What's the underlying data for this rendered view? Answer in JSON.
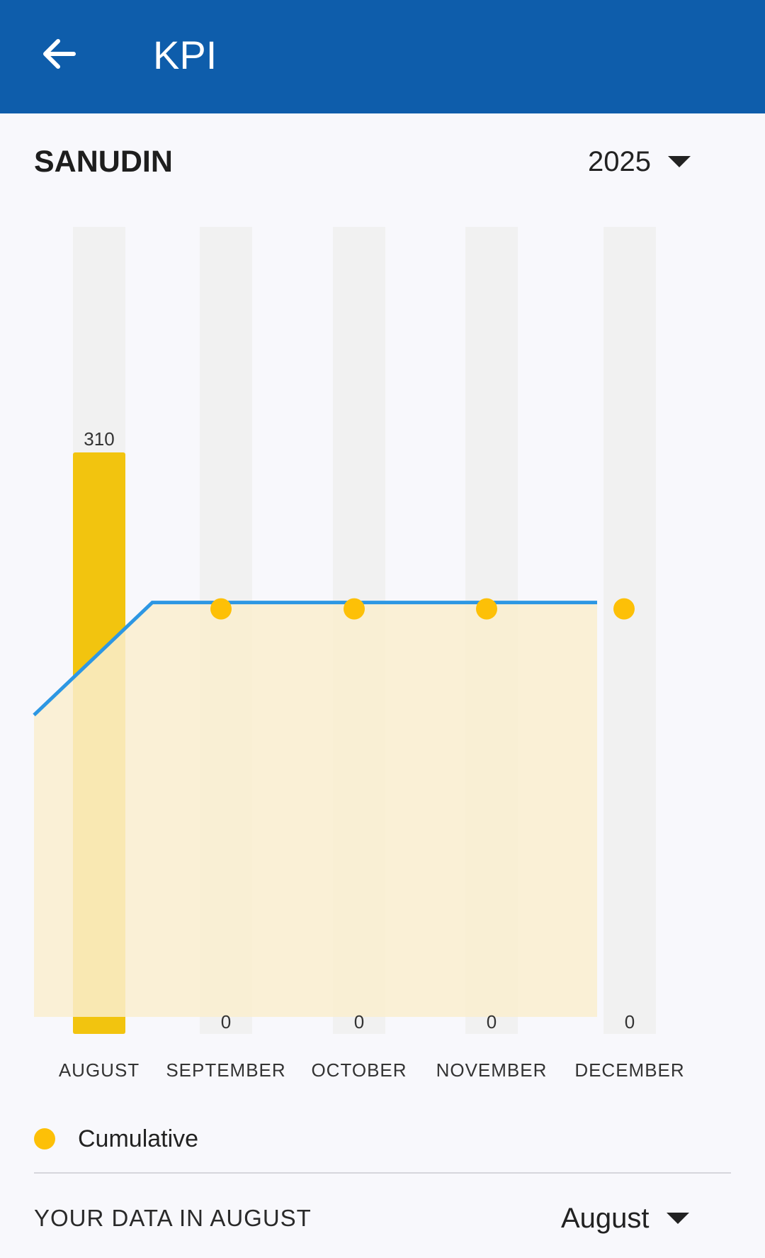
{
  "header": {
    "title": "KPI",
    "back_icon": "arrow-left-icon",
    "background_color": "#0e5dab"
  },
  "user": {
    "name": "SANUDIN"
  },
  "year_select": {
    "value": "2025"
  },
  "chart_data": {
    "type": "bar",
    "categories": [
      "AUGUST",
      "SEPTEMBER",
      "OCTOBER",
      "NOVEMBER",
      "DECEMBER"
    ],
    "series": [
      {
        "values": [
          310,
          0,
          0,
          0,
          0
        ],
        "color": "#f2c40f"
      }
    ],
    "data_labels": [
      "310",
      "0",
      "0",
      "0",
      "0"
    ],
    "cumulative": [
      170,
      230,
      230,
      230,
      230
    ],
    "legend": [
      {
        "name": "Cumulative",
        "color": "#fdc007"
      }
    ],
    "ylim": [
      0,
      400
    ],
    "line_color": "#2d97e3",
    "area_color": "#faefcf",
    "track_color": "#f1f1f1",
    "grid": false
  },
  "data_section": {
    "title": "YOUR DATA IN AUGUST",
    "month_value": "August"
  }
}
